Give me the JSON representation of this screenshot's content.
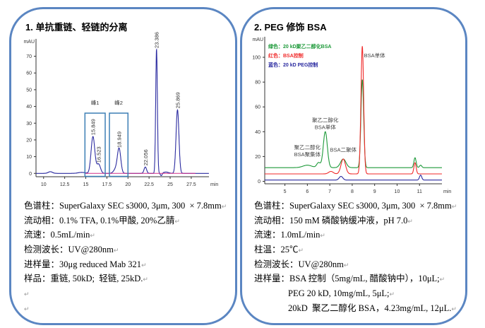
{
  "left": {
    "title": "1.   单抗重链、轻链的分离",
    "lines": [
      {
        "label": "色谱柱：",
        "value": "SuperGalaxy SEC s3000, 3μm, 300  × 7.8mm"
      },
      {
        "label": "流动相：",
        "value": "0.1% TFA, 0.1%甲酸, 20%乙腈"
      },
      {
        "label": "流速：",
        "value": "0.5mL/min"
      },
      {
        "label": "检测波长：",
        "value": "UV@280nm"
      },
      {
        "label": "进样量：",
        "value": "30μg reduced Mab 321"
      },
      {
        "label": "样品：",
        "value": "重链, 50kD;  轻链, 25kD."
      }
    ]
  },
  "right": {
    "title": "2.    PEG 修饰 BSA",
    "lines": [
      {
        "label": "色谱柱：",
        "value": "SuperGalaxy SEC s3000, 3μm, 300  × 7.8mm"
      },
      {
        "label": "流动相：",
        "value": "150 mM 磷酸钠缓冲液，pH 7.0"
      },
      {
        "label": "流速：",
        "value": "1.0mL/min"
      },
      {
        "label": "柱温：",
        "value": "25℃"
      },
      {
        "label": "检测波长：",
        "value": "UV@280nm"
      },
      {
        "label": "进样量：",
        "value": "BSA 控制（5mg/mL, 醋酸钠中），10μL;"
      },
      {
        "label": "",
        "value": "PEG 20 kD, 10mg/mL, 5μL;"
      },
      {
        "label": "",
        "value": "20kD  聚乙二醇化 BSA，4.23mg/mL, 12μL."
      }
    ]
  },
  "chart_data": [
    {
      "type": "line",
      "ylabel": "mAU",
      "xlabel": "min",
      "xlim": [
        9.1,
        29.6
      ],
      "ylim": [
        -2,
        77
      ],
      "xticks": [
        10,
        12.5,
        15,
        17.5,
        20,
        22.5,
        25,
        27.5
      ],
      "yticks": [
        0,
        10,
        20,
        30,
        40,
        50,
        60,
        70
      ],
      "grid": false,
      "series": [
        {
          "color": "#2b2ba0",
          "peaks": [
            {
              "rt": 10.8,
              "height": 1,
              "width": 0.25
            },
            {
              "rt": 14.5,
              "height": 0.6,
              "width": 0.4
            },
            {
              "rt": 15.849,
              "height": 22,
              "width": 0.22,
              "label": "15.849"
            },
            {
              "rt": 16.523,
              "height": 5.5,
              "width": 0.22,
              "label": "16.523"
            },
            {
              "rt": 18.55,
              "height": 2.5,
              "width": 0.25
            },
            {
              "rt": 18.949,
              "height": 14.5,
              "width": 0.2,
              "label": "18.949"
            },
            {
              "rt": 22.056,
              "height": 3.8,
              "width": 0.15,
              "label": "22.056"
            },
            {
              "rt": 23.386,
              "height": 74,
              "width": 0.1,
              "label": "23.386"
            },
            {
              "rt": 24.5,
              "height": 0.8,
              "width": 0.3
            },
            {
              "rt": 25.869,
              "height": 38,
              "width": 0.17,
              "label": "25.869"
            }
          ]
        }
      ],
      "boxes": [
        {
          "label": "峰1",
          "from": 14.9,
          "to": 17.3
        },
        {
          "label": "峰2",
          "from": 17.8,
          "to": 20
        }
      ]
    },
    {
      "type": "line",
      "ylabel": "mAU",
      "xlabel": "min",
      "xlim": [
        4.1,
        12.0
      ],
      "ylim": [
        -2,
        112
      ],
      "xticks": [
        5,
        6,
        7,
        8,
        9,
        10,
        11
      ],
      "yticks": [
        0,
        20,
        40,
        60,
        80,
        100
      ],
      "grid": false,
      "legend": "top-left",
      "series": [
        {
          "name": "绿色：20 kD聚乙二醇化BSA",
          "color": "#1e9a3a",
          "baseline": 11,
          "peaks": [
            {
              "rt": 6.0,
              "height": 2,
              "width": 0.2
            },
            {
              "rt": 6.5,
              "height": 4,
              "width": 0.08
            },
            {
              "rt": 6.8,
              "height": 29,
              "width": 0.09
            },
            {
              "rt": 7.6,
              "height": 7,
              "width": 0.12
            },
            {
              "rt": 8.45,
              "height": 71,
              "width": 0.06
            },
            {
              "rt": 10.8,
              "height": 8,
              "width": 0.05
            },
            {
              "rt": 11.05,
              "height": 2,
              "width": 0.05
            }
          ]
        },
        {
          "name": "红色：BSA控制",
          "color": "#f02a2a",
          "baseline": 6,
          "peaks": [
            {
              "rt": 7.05,
              "height": 2,
              "width": 0.1
            },
            {
              "rt": 7.6,
              "height": 12,
              "width": 0.1
            },
            {
              "rt": 8.45,
              "height": 103,
              "width": 0.06
            },
            {
              "rt": 10.8,
              "height": 9,
              "width": 0.05
            }
          ]
        },
        {
          "name": "蓝色：20 kD PEG控制",
          "color": "#2a2aa0",
          "baseline": 1,
          "peaks": [
            {
              "rt": 7.5,
              "height": 3,
              "width": 0.08
            },
            {
              "rt": 11.05,
              "height": 4,
              "width": 0.05
            }
          ]
        }
      ],
      "annotations": [
        {
          "text": [
            "聚乙二醇化",
            "BSA聚集体"
          ],
          "x": 6.0,
          "y": 26
        },
        {
          "text": [
            "聚乙二醇化",
            "BSA单体"
          ],
          "x": 6.8,
          "y": 48
        },
        {
          "text": [
            "BSA二聚体"
          ],
          "x": 7.6,
          "y": 24
        },
        {
          "text": [
            "BSA单体"
          ],
          "x": 9.0,
          "y": 100
        }
      ]
    }
  ]
}
